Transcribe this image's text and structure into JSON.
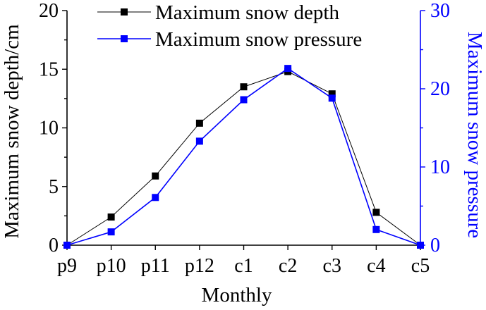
{
  "chart_data": {
    "type": "line",
    "title": "",
    "x": [
      "p9",
      "p10",
      "p11",
      "p12",
      "c1",
      "c2",
      "c3",
      "c4",
      "c5"
    ],
    "xlabel": "Monthly",
    "ylabel": "Maximum snow depth/cm",
    "ylabel_right": "Maximum snow pressure",
    "ylim": [
      0,
      20
    ],
    "ylim_right": [
      0,
      30
    ],
    "yticks": [
      "0",
      "5",
      "10",
      "15",
      "20"
    ],
    "yticks_right": [
      "0",
      "10",
      "20",
      "30"
    ],
    "grid": false,
    "legend_placement": "top-center",
    "series": [
      {
        "name": "Maximum snow depth",
        "axis": "left",
        "color": "#000000",
        "marker": "square",
        "values": [
          0,
          2.4,
          5.9,
          10.4,
          13.5,
          14.8,
          12.9,
          2.8,
          0
        ]
      },
      {
        "name": "Maximum snow pressure",
        "axis": "right",
        "color": "#0000ff",
        "marker": "square",
        "values": [
          0,
          1.7,
          6.1,
          13.3,
          18.6,
          22.6,
          18.8,
          2.0,
          0
        ]
      }
    ]
  }
}
